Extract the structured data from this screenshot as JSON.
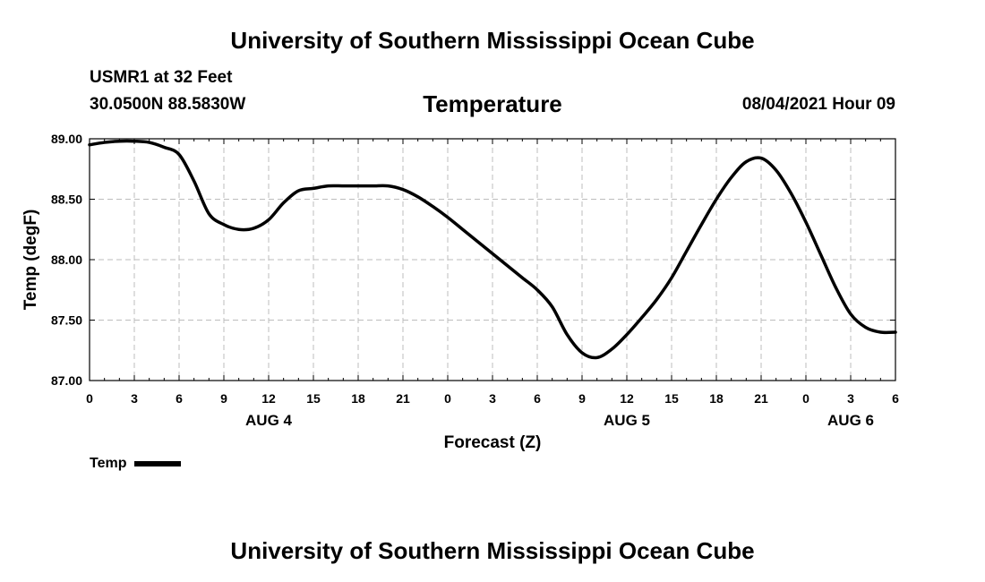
{
  "header": {
    "title": "University of Southern Mississippi Ocean Cube",
    "station": "USMR1 at 32 Feet",
    "coordinates": "30.0500N  88.5830W",
    "chart_title": "Temperature",
    "datetime": "08/04/2021 Hour 09"
  },
  "footer": {
    "title": "University of Southern Mississippi Ocean Cube"
  },
  "legend": {
    "label": "Temp",
    "color": "#000000"
  },
  "chart_data": {
    "type": "line",
    "title": "Temperature",
    "xlabel": "Forecast (Z)",
    "ylabel": "Temp (degF)",
    "xlim": [
      0,
      54
    ],
    "ylim": [
      87.0,
      89.0
    ],
    "grid": true,
    "legend_position": "bottom-left",
    "y_ticks": [
      87.0,
      87.5,
      88.0,
      88.5,
      89.0
    ],
    "y_tick_labels": [
      "87.00",
      "87.50",
      "88.00",
      "88.50",
      "89.00"
    ],
    "x_ticks": [
      0,
      3,
      6,
      9,
      12,
      15,
      18,
      21,
      24,
      27,
      30,
      33,
      36,
      39,
      42,
      45,
      48,
      51,
      54
    ],
    "x_tick_labels": [
      "0",
      "3",
      "6",
      "9",
      "12",
      "15",
      "18",
      "21",
      "0",
      "3",
      "6",
      "9",
      "12",
      "15",
      "18",
      "21",
      "0",
      "3",
      "6"
    ],
    "date_labels": [
      {
        "x": 12,
        "label": "AUG 4"
      },
      {
        "x": 36,
        "label": "AUG 5"
      },
      {
        "x": 51,
        "label": "AUG 6"
      }
    ],
    "series": [
      {
        "name": "Temp",
        "color": "#000000",
        "x": [
          0,
          1,
          2,
          3,
          4,
          5,
          6,
          7,
          8,
          9,
          10,
          11,
          12,
          13,
          14,
          15,
          16,
          17,
          18,
          19,
          20,
          21,
          22,
          23,
          24,
          25,
          26,
          27,
          28,
          29,
          30,
          31,
          32,
          33,
          34,
          35,
          36,
          37,
          38,
          39,
          40,
          41,
          42,
          43,
          44,
          45,
          46,
          47,
          48,
          49,
          50,
          51,
          52,
          53,
          54
        ],
        "values": [
          88.95,
          88.97,
          88.98,
          88.98,
          88.97,
          88.93,
          88.87,
          88.65,
          88.38,
          88.29,
          88.25,
          88.26,
          88.33,
          88.47,
          88.57,
          88.59,
          88.61,
          88.61,
          88.61,
          88.61,
          88.61,
          88.58,
          88.52,
          88.44,
          88.35,
          88.25,
          88.15,
          88.05,
          87.95,
          87.85,
          87.75,
          87.61,
          87.38,
          87.23,
          87.19,
          87.26,
          87.38,
          87.52,
          87.67,
          87.85,
          88.07,
          88.29,
          88.5,
          88.68,
          88.81,
          88.84,
          88.74,
          88.55,
          88.31,
          88.04,
          87.77,
          87.55,
          87.44,
          87.4,
          87.4
        ]
      }
    ]
  }
}
